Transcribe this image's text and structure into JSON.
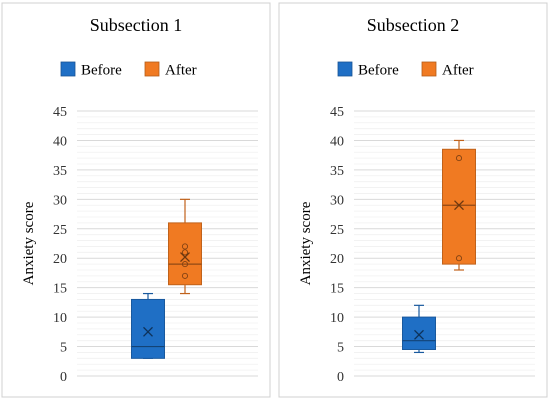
{
  "chart_data": [
    {
      "type": "box",
      "title": "Subsection 1",
      "ylabel": "Anxiety score",
      "xlabel": "",
      "ylim": [
        0,
        45
      ],
      "y_ticks": [
        0,
        5,
        10,
        15,
        20,
        25,
        30,
        35,
        40,
        45
      ],
      "grid": true,
      "legend_position": "top",
      "series": [
        {
          "name": "Before",
          "color": "#1f6fc5",
          "min": 3,
          "q1": 3,
          "median": 5,
          "q3": 13,
          "max": 14,
          "mean": 7.5,
          "outliers": []
        },
        {
          "name": "After",
          "color": "#f07a22",
          "min": 14,
          "q1": 15.5,
          "median": 19,
          "q3": 26,
          "max": 30,
          "mean": 20.2,
          "points": [
            17,
            19,
            21,
            22
          ]
        }
      ]
    },
    {
      "type": "box",
      "title": "Subsection 2",
      "ylabel": "Anxiety score",
      "xlabel": "",
      "ylim": [
        0,
        45
      ],
      "y_ticks": [
        0,
        5,
        10,
        15,
        20,
        25,
        30,
        35,
        40,
        45
      ],
      "grid": true,
      "legend_position": "top",
      "series": [
        {
          "name": "Before",
          "color": "#1f6fc5",
          "min": 4,
          "q1": 4.5,
          "median": 6,
          "q3": 10,
          "max": 12,
          "mean": 7,
          "outliers": []
        },
        {
          "name": "After",
          "color": "#f07a22",
          "min": 18,
          "q1": 19,
          "median": 29,
          "q3": 38.5,
          "max": 40,
          "mean": 29,
          "points": [
            20,
            37
          ]
        }
      ]
    }
  ]
}
